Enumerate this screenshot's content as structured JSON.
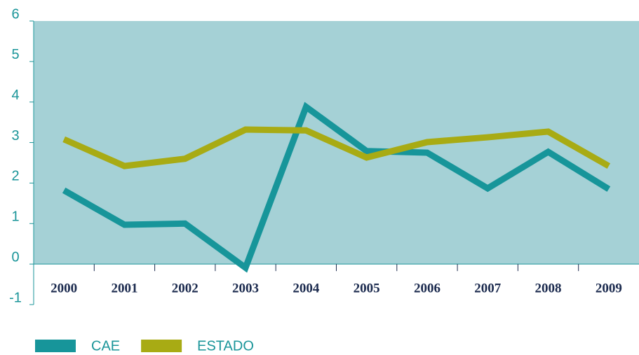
{
  "chart_data": {
    "type": "line",
    "categories": [
      "2000",
      "2001",
      "2002",
      "2003",
      "2004",
      "2005",
      "2006",
      "2007",
      "2008",
      "2009"
    ],
    "series": [
      {
        "name": "CAE",
        "color": "#17959a",
        "values": [
          1.82,
          0.97,
          1.0,
          -0.09,
          3.88,
          2.79,
          2.75,
          1.87,
          2.77,
          1.85
        ]
      },
      {
        "name": "ESTADO",
        "color": "#a8ab14",
        "values": [
          3.08,
          2.42,
          2.6,
          3.32,
          3.3,
          2.63,
          3.01,
          3.13,
          3.27,
          2.42
        ]
      }
    ],
    "ylim": [
      -1,
      6
    ],
    "yticks": [
      -1,
      0,
      1,
      2,
      3,
      4,
      5,
      6
    ],
    "plot_background": "#a5d1d6",
    "legend": "bottom"
  }
}
